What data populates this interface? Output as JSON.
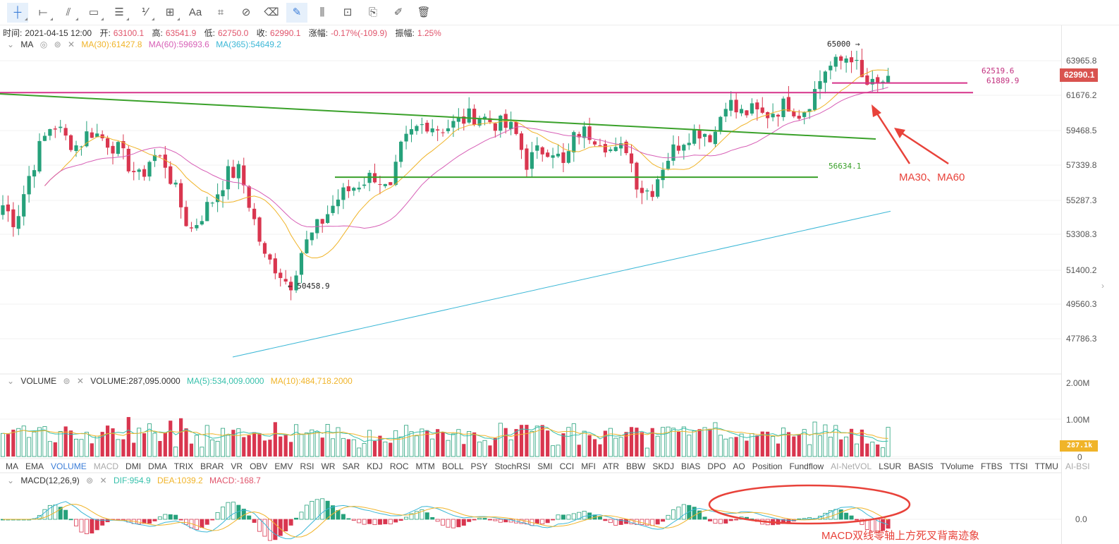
{
  "toolbar": {
    "tools": [
      {
        "name": "crosshair-icon",
        "glyph": "┼",
        "active": true,
        "menu": true
      },
      {
        "name": "horizontal-line-icon",
        "glyph": "⟝",
        "menu": true
      },
      {
        "name": "trend-line-icon",
        "glyph": "⫽",
        "menu": true
      },
      {
        "name": "rectangle-icon",
        "glyph": "▭",
        "menu": true
      },
      {
        "name": "parallel-lines-icon",
        "glyph": "☰",
        "menu": true
      },
      {
        "name": "fibonacci-icon",
        "glyph": "⅟",
        "menu": true
      },
      {
        "name": "measure-icon",
        "glyph": "⊞",
        "menu": true
      },
      {
        "name": "text-icon",
        "glyph": "Aa"
      },
      {
        "name": "magnet-icon",
        "glyph": "⌗"
      },
      {
        "name": "magnet-strong-icon",
        "glyph": "⊘"
      },
      {
        "name": "eraser-icon",
        "glyph": "⌫"
      },
      {
        "name": "draw-mode-icon",
        "glyph": "✎",
        "active": true
      },
      {
        "name": "candles-icon",
        "glyph": "⫼"
      },
      {
        "name": "lock-icon",
        "glyph": "⊡"
      },
      {
        "name": "bookmark-icon",
        "glyph": "⎘"
      },
      {
        "name": "notes-icon",
        "glyph": "✐"
      },
      {
        "name": "trash-icon",
        "glyph": "🗑"
      }
    ]
  },
  "ohlc": {
    "time_label": "时间:",
    "time": "2021-04-15 12:00",
    "open_label": "开:",
    "open": "63100.1",
    "high_label": "高:",
    "high": "63541.9",
    "low_label": "低:",
    "low": "62750.0",
    "close_label": "收:",
    "close": "62990.1",
    "change_label": "涨幅:",
    "change": "-0.17%(-109.9)",
    "amp_label": "振幅:",
    "amp": "1.25%"
  },
  "ma_legend": {
    "name": "MA",
    "ma30": "MA(30):61427.8",
    "ma60": "MA(60):59693.6",
    "ma365": "MA(365):54649.2"
  },
  "price_axis": [
    "63965.8",
    "61676.2",
    "59468.5",
    "57339.8",
    "55287.3",
    "53308.3",
    "51400.2",
    "49560.3",
    "47786.3"
  ],
  "price_tag": "62990.1",
  "annotations": {
    "high": "65000",
    "low": "50458.9",
    "level1": "62519.6",
    "level2": "61889.9",
    "support": "56634.1",
    "ma_note": "MA30、MA60",
    "macd_note": "MACD双线零轴上方死叉背离迹象"
  },
  "volume_legend": {
    "name": "VOLUME",
    "value": "VOLUME:287,095.0000",
    "ma5": "MA(5):534,009.0000",
    "ma10": "MA(10):484,718.2000"
  },
  "volume_axis": [
    "2.00M",
    "1.00M",
    "0"
  ],
  "volume_tag": "287.1k",
  "indicator_tabs": [
    "MA",
    "EMA",
    "VOLUME",
    "MACD",
    "DMI",
    "DMA",
    "TRIX",
    "BRAR",
    "VR",
    "OBV",
    "EMV",
    "RSI",
    "WR",
    "SAR",
    "KDJ",
    "ROC",
    "MTM",
    "BOLL",
    "PSY",
    "StochRSI",
    "SMI",
    "CCI",
    "MFI",
    "ATR",
    "BBW",
    "SKDJ",
    "BIAS",
    "DPO",
    "AO",
    "Position",
    "Fundflow",
    "AI-NetVOL",
    "LSUR",
    "BASIS",
    "TVolume",
    "FTBS",
    "TTSI",
    "TTMU",
    "AI-BSI"
  ],
  "active_tab": "VOLUME",
  "dim_tabs": [
    "MACD",
    "AI-NetVOL",
    "AI-BSI"
  ],
  "macd_legend": {
    "name": "MACD(12,26,9)",
    "dif": "DIF:954.9",
    "dea": "DEA:1039.2",
    "macd": "MACD:-168.7"
  },
  "macd_axis": [
    "0.0"
  ],
  "colors": {
    "up": "#26a17b",
    "down": "#d9364f",
    "ma30": "#f0b429",
    "ma60": "#d75fb6",
    "ma365": "#3bb7d6",
    "level": "#d6338a",
    "trend": "#3aa12a",
    "annotation": "#e8423a"
  },
  "chart_data": {
    "type": "candlestick",
    "anchors_close": [
      55000,
      54000,
      56500,
      58500,
      60000,
      59000,
      58500,
      59500,
      59000,
      58500,
      57500,
      56500,
      58000,
      57500,
      55500,
      53500,
      54500,
      55500,
      56800,
      57000,
      54500,
      52000,
      51500,
      50500,
      52500,
      53500,
      54500,
      55500,
      56000,
      56500,
      56800,
      55500,
      58500,
      59500,
      60000,
      59600,
      59800,
      60200,
      60500,
      60100,
      59800,
      59500,
      57500,
      58200,
      58500,
      57200,
      59400,
      59300,
      59000,
      58000,
      58500,
      56000,
      55800,
      57500,
      58500,
      59300,
      59500,
      59100,
      61500,
      60500,
      60700,
      60400,
      60800,
      61200,
      60500,
      61800,
      63500,
      63800,
      64500,
      62500,
      62200,
      62990
    ],
    "ma365_range": [
      46900,
      54649
    ],
    "lines": {
      "resistance_levels": [
        61889.9,
        62519.6
      ],
      "support_level": 56634.1
    }
  }
}
